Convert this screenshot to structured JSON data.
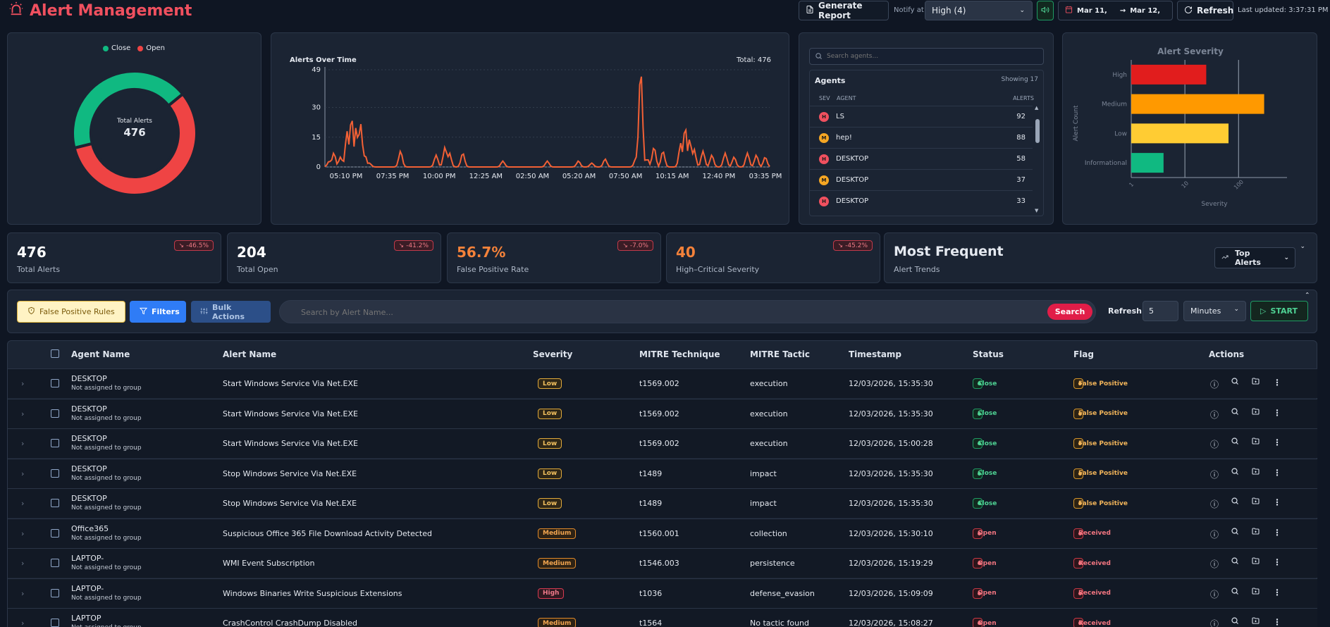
{
  "header": {
    "title": "Alert Management",
    "generate_report": "Generate Report",
    "notify_label": "Notify at",
    "notify_value": "High (4)",
    "date_from": "Mar 11,",
    "date_to": "Mar 12,",
    "refresh": "Refresh",
    "last_updated": "Last updated: 3:37:31 PM"
  },
  "donut": {
    "legend_close": "Close",
    "legend_open": "Open",
    "center_label": "Total Alerts",
    "center_value": "476",
    "close_fraction": 0.43,
    "colors": {
      "close": "#10b981",
      "open": "#ef4444"
    }
  },
  "timeline": {
    "title": "Alerts Over Time",
    "total": "Total: 476",
    "yticks": [
      "49",
      "30",
      "15",
      "0"
    ],
    "xticks": [
      "05:10 PM",
      "07:35 PM",
      "10:00 PM",
      "12:25 AM",
      "02:50 AM",
      "05:20 AM",
      "07:50 AM",
      "10:15 AM",
      "12:40 PM",
      "03:35 PM"
    ]
  },
  "chart_data": [
    {
      "type": "line",
      "title": "Alerts Over Time",
      "ylim": [
        0,
        49
      ],
      "x": [
        "05:10 PM",
        "07:35 PM",
        "10:00 PM",
        "12:25 AM",
        "02:50 AM",
        "05:20 AM",
        "07:50 AM",
        "10:15 AM",
        "12:40 PM",
        "03:35 PM"
      ],
      "series": [
        {
          "values": [
            12,
            7,
            6,
            1,
            0,
            1,
            2,
            10,
            13,
            6
          ]
        }
      ],
      "peak": 49
    },
    {
      "type": "bar",
      "title": "Alert Severity",
      "categories": [
        "High",
        "Medium",
        "Low",
        "Informational"
      ],
      "values": [
        25,
        300,
        65,
        4
      ],
      "scale": "log",
      "xticks": [
        "1",
        "10",
        "100"
      ],
      "xlabel": "Severity",
      "ylabel": "Alert Count",
      "colors": [
        "#e11d1d",
        "#ff9900",
        "#ffcc33",
        "#10b981"
      ]
    }
  ],
  "agents": {
    "search_placeholder": "Search agents...",
    "title": "Agents",
    "showing": "Showing 17",
    "col_sev": "SEV",
    "col_agent": "AGENT",
    "col_alerts": "ALERTS",
    "rows": [
      {
        "sev": "H",
        "name": "LS",
        "alerts": "92",
        "color": "#f0505f"
      },
      {
        "sev": "M",
        "name": "hep!",
        "alerts": "88",
        "color": "#f5a623"
      },
      {
        "sev": "H",
        "name": "DESKTOP",
        "alerts": "58",
        "color": "#f0505f"
      },
      {
        "sev": "M",
        "name": "DESKTOP",
        "alerts": "37",
        "color": "#f5a623"
      },
      {
        "sev": "H",
        "name": "DESKTOP",
        "alerts": "33",
        "color": "#f0505f"
      }
    ]
  },
  "severity_chart": {
    "title": "Alert Severity",
    "categories": [
      "High",
      "Medium",
      "Low",
      "Informational"
    ],
    "xlabel": "Severity",
    "ylabel": "Alert Count",
    "xticks": [
      "1",
      "10",
      "100"
    ]
  },
  "stats": [
    {
      "value": "476",
      "label": "Total Alerts",
      "delta": "-46.5%",
      "color": "#ffffff"
    },
    {
      "value": "204",
      "label": "Total Open",
      "delta": "-41.2%",
      "color": "#ffffff"
    },
    {
      "value": "56.7%",
      "label": "False Positive Rate",
      "delta": "-7.0%",
      "color": "#f5823a"
    },
    {
      "value": "40",
      "label": "High–Critical Severity",
      "delta": "-45.2%",
      "color": "#f5823a"
    }
  ],
  "trends": {
    "title": "Most Frequent",
    "subtitle": "Alert Trends",
    "button": "Top Alerts"
  },
  "toolbar": {
    "fp_rules": "False Positive Rules",
    "filters": "Filters",
    "bulk": "Bulk Actions",
    "search_placeholder": "Search by Alert Name...",
    "search": "Search",
    "refresh_label": "Refresh",
    "refresh_value": "5",
    "unit": "Minutes",
    "start": "START"
  },
  "table": {
    "headers": [
      "Agent Name",
      "Alert Name",
      "Severity",
      "MITRE Technique",
      "MITRE Tactic",
      "Timestamp",
      "Status",
      "Flag",
      "Actions"
    ],
    "rows": [
      {
        "agent": "DESKTOP",
        "group": "Not assigned to group",
        "alert": "Start Windows Service Via Net.EXE",
        "severity": "Low",
        "technique": "t1569.002",
        "tactic": "execution",
        "timestamp": "12/03/2026, 15:35:30",
        "status": "Close",
        "flag": "False Positive"
      },
      {
        "agent": "DESKTOP",
        "group": "Not assigned to group",
        "alert": "Start Windows Service Via Net.EXE",
        "severity": "Low",
        "technique": "t1569.002",
        "tactic": "execution",
        "timestamp": "12/03/2026, 15:35:30",
        "status": "Close",
        "flag": "False Positive"
      },
      {
        "agent": "DESKTOP",
        "group": "Not assigned to group",
        "alert": "Start Windows Service Via Net.EXE",
        "severity": "Low",
        "technique": "t1569.002",
        "tactic": "execution",
        "timestamp": "12/03/2026, 15:00:28",
        "status": "Close",
        "flag": "False Positive"
      },
      {
        "agent": "DESKTOP",
        "group": "Not assigned to group",
        "alert": "Stop Windows Service Via Net.EXE",
        "severity": "Low",
        "technique": "t1489",
        "tactic": "impact",
        "timestamp": "12/03/2026, 15:35:30",
        "status": "Close",
        "flag": "False Positive"
      },
      {
        "agent": "DESKTOP",
        "group": "Not assigned to group",
        "alert": "Stop Windows Service Via Net.EXE",
        "severity": "Low",
        "technique": "t1489",
        "tactic": "impact",
        "timestamp": "12/03/2026, 15:35:30",
        "status": "Close",
        "flag": "False Positive"
      },
      {
        "agent": "Office365",
        "group": "Not assigned to group",
        "alert": "Suspicious Office 365 File Download Activity Detected",
        "severity": "Medium",
        "technique": "t1560.001",
        "tactic": "collection",
        "timestamp": "12/03/2026, 15:30:10",
        "status": "Open",
        "flag": "Received"
      },
      {
        "agent": "LAPTOP-",
        "group": "Not assigned to group",
        "alert": "WMI Event Subscription",
        "severity": "Medium",
        "technique": "t1546.003",
        "tactic": "persistence",
        "timestamp": "12/03/2026, 15:19:29",
        "status": "Open",
        "flag": "Received"
      },
      {
        "agent": "LAPTOP-",
        "group": "Not assigned to group",
        "alert": "Windows Binaries Write Suspicious Extensions",
        "severity": "High",
        "technique": "t1036",
        "tactic": "defense_evasion",
        "timestamp": "12/03/2026, 15:09:09",
        "status": "Open",
        "flag": "Received"
      },
      {
        "agent": "LAPTOP",
        "group": "Not assigned to group",
        "alert": "CrashControl CrashDump Disabled",
        "severity": "Medium",
        "technique": "t1564",
        "tactic": "No tactic found",
        "timestamp": "12/03/2026, 15:08:27",
        "status": "Open",
        "flag": "Received"
      }
    ]
  }
}
